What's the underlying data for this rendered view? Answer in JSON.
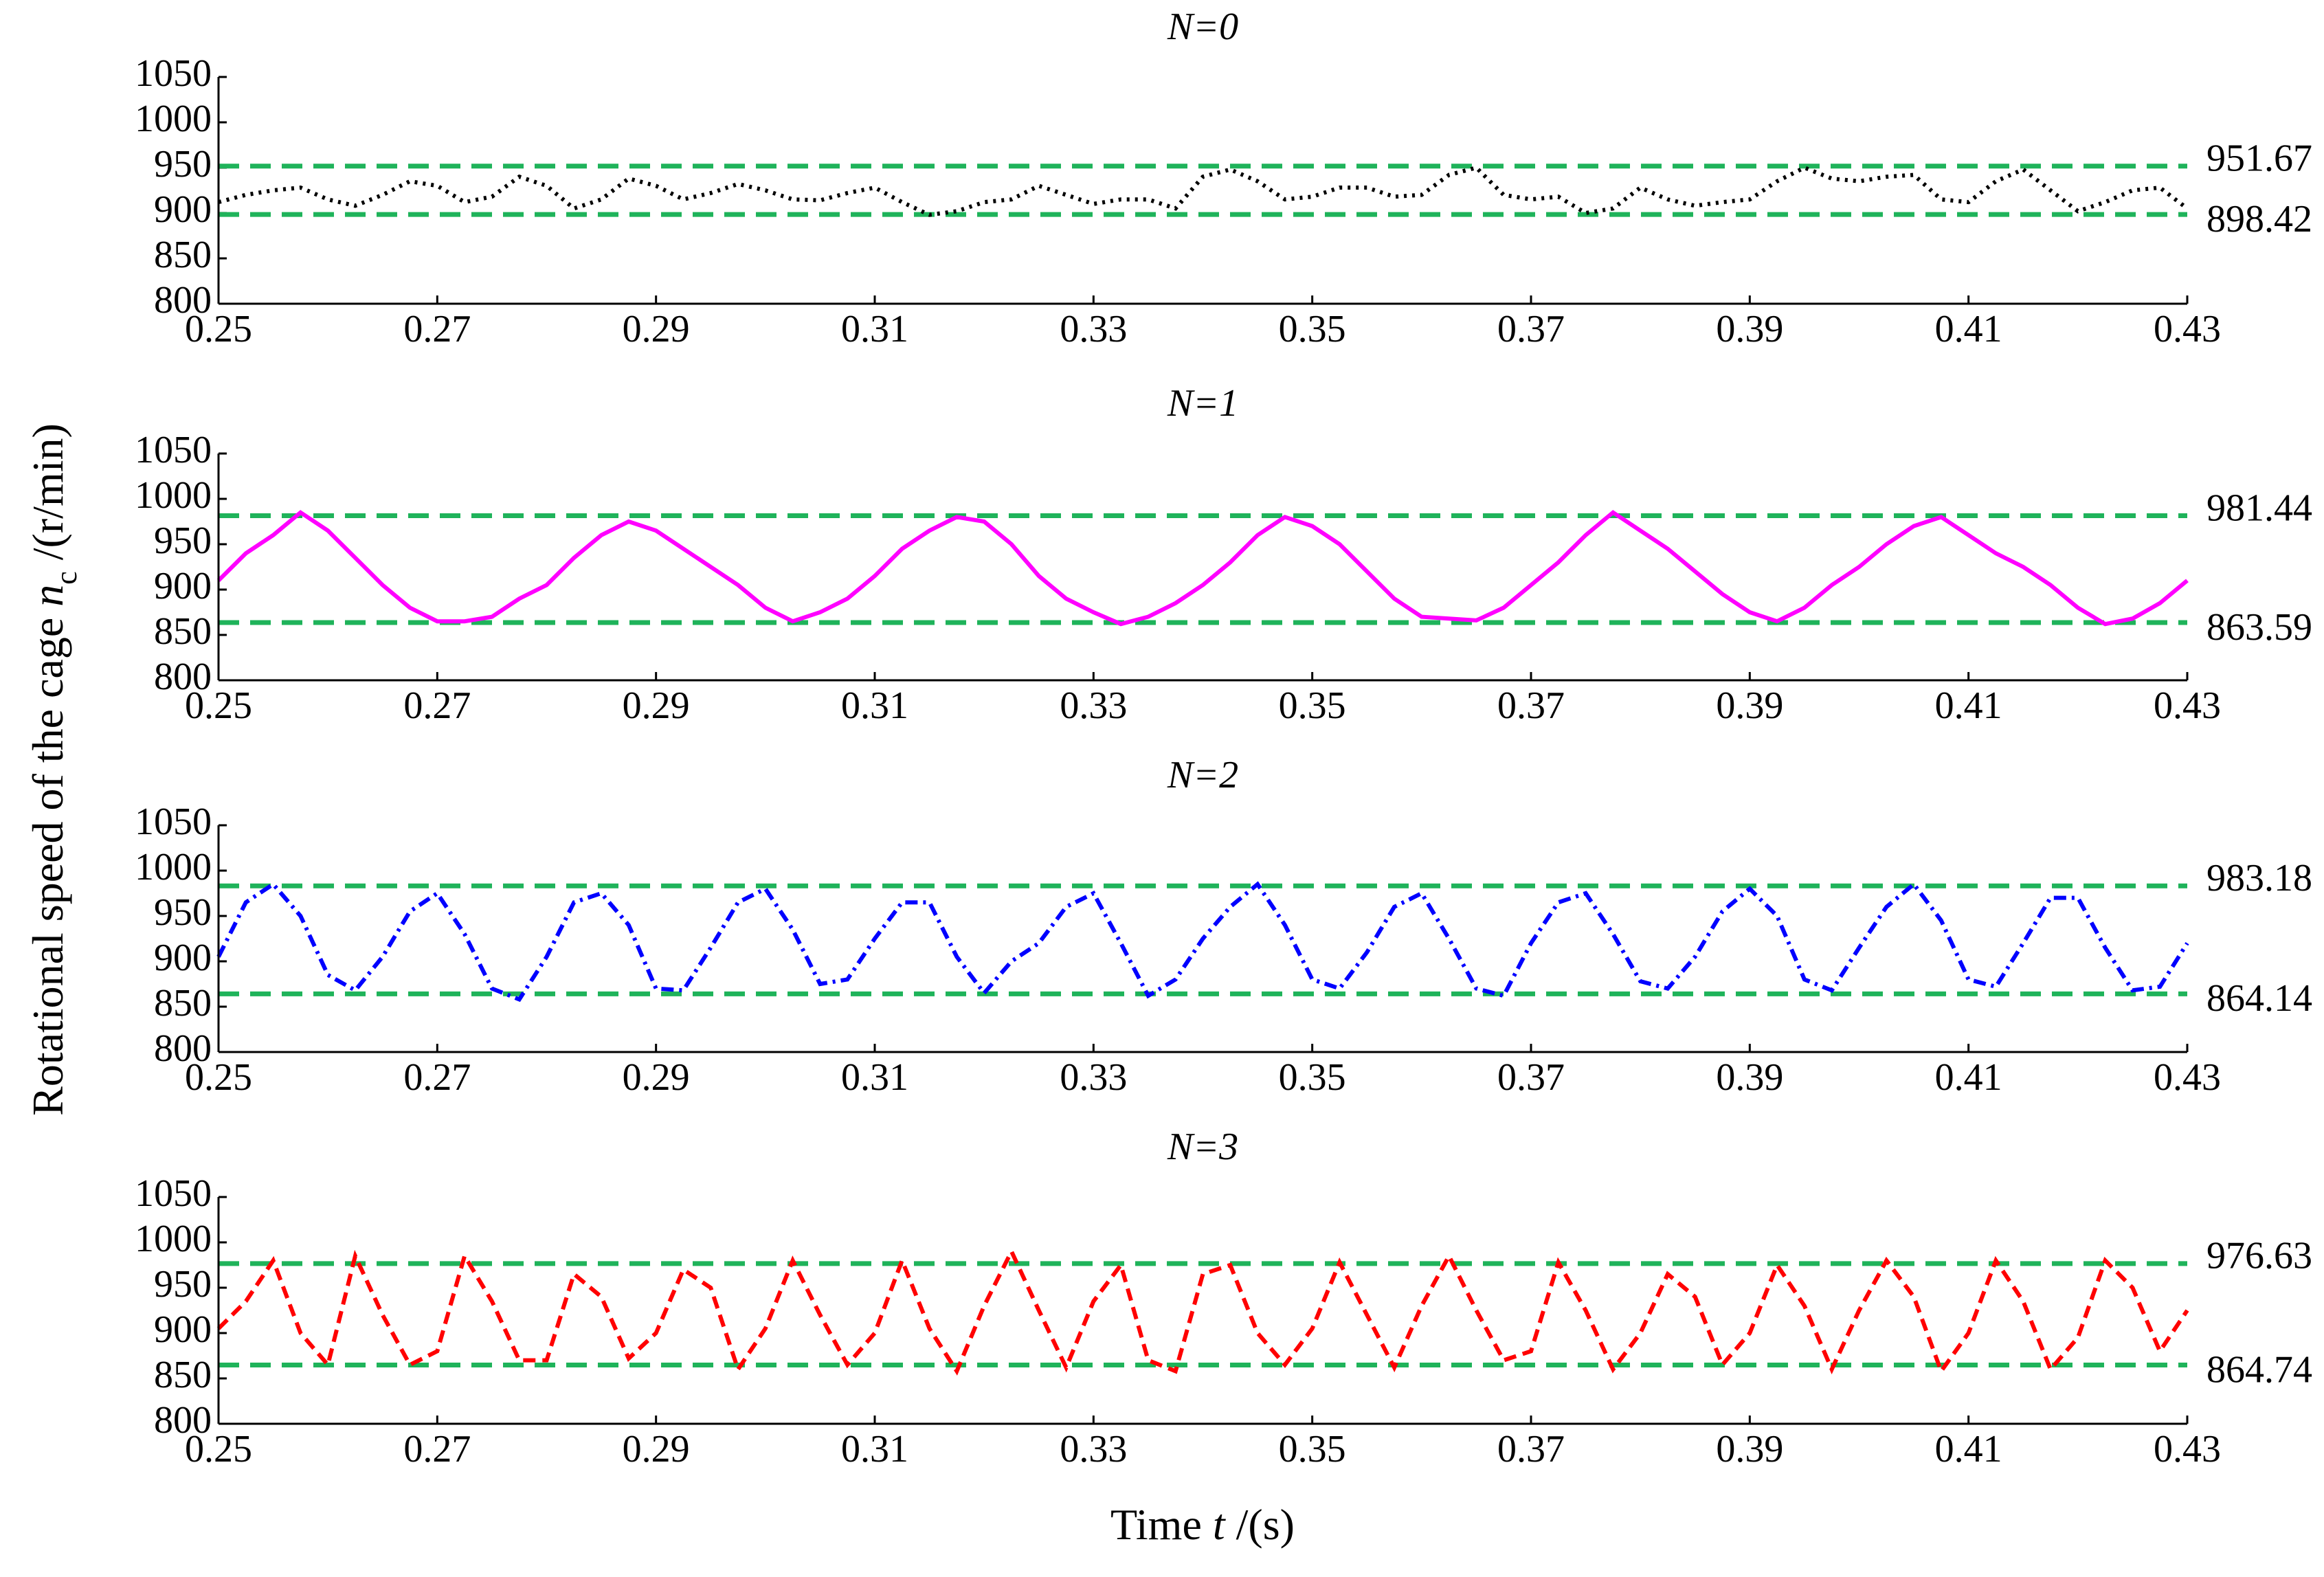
{
  "chart_data": [
    {
      "type": "line",
      "title": "N=0",
      "color": "#000000",
      "linestyle": "dotted",
      "x": [
        0.25,
        0.2525,
        0.255,
        0.2575,
        0.26,
        0.2625,
        0.265,
        0.2675,
        0.27,
        0.2725,
        0.275,
        0.2775,
        0.28,
        0.2825,
        0.285,
        0.2875,
        0.29,
        0.2925,
        0.295,
        0.2975,
        0.3,
        0.3025,
        0.305,
        0.3075,
        0.31,
        0.3125,
        0.315,
        0.3175,
        0.32,
        0.3225,
        0.325,
        0.3275,
        0.33,
        0.3325,
        0.335,
        0.3375,
        0.34,
        0.3425,
        0.345,
        0.3475,
        0.35,
        0.3525,
        0.355,
        0.3575,
        0.36,
        0.3625,
        0.365,
        0.3675,
        0.37,
        0.3725,
        0.375,
        0.3775,
        0.38,
        0.3825,
        0.385,
        0.3875,
        0.39,
        0.3925,
        0.395,
        0.3975,
        0.4,
        0.4025,
        0.405,
        0.4075,
        0.41,
        0.4125,
        0.415,
        0.4175,
        0.42,
        0.4225,
        0.425,
        0.4275,
        0.43
      ],
      "values": [
        912,
        920,
        925,
        928,
        915,
        908,
        920,
        935,
        930,
        912,
        918,
        940,
        930,
        905,
        915,
        938,
        930,
        915,
        922,
        932,
        925,
        915,
        914,
        922,
        928,
        912,
        898,
        902,
        912,
        915,
        930,
        920,
        910,
        915,
        915,
        905,
        940,
        948,
        935,
        915,
        918,
        928,
        928,
        918,
        920,
        942,
        950,
        920,
        915,
        918,
        900,
        905,
        928,
        915,
        908,
        912,
        915,
        935,
        950,
        938,
        935,
        940,
        942,
        915,
        912,
        935,
        948,
        925,
        902,
        912,
        925,
        928,
        905
      ],
      "xlim": [
        0.25,
        0.43
      ],
      "ylim": [
        800,
        1050
      ],
      "xticks": [
        0.25,
        0.27,
        0.29,
        0.31,
        0.33,
        0.35,
        0.37,
        0.39,
        0.41,
        0.43
      ],
      "yticks": [
        800,
        850,
        900,
        950,
        1000,
        1050
      ],
      "hlines": [
        951.67,
        898.42
      ],
      "hline_color": "#1fb35a"
    },
    {
      "type": "line",
      "title": "N=1",
      "color": "#ff00ff",
      "linestyle": "solid",
      "x": [
        0.25,
        0.2525,
        0.255,
        0.2575,
        0.26,
        0.2625,
        0.265,
        0.2675,
        0.27,
        0.2725,
        0.275,
        0.2775,
        0.28,
        0.2825,
        0.285,
        0.2875,
        0.29,
        0.2925,
        0.295,
        0.2975,
        0.3,
        0.3025,
        0.305,
        0.3075,
        0.31,
        0.3125,
        0.315,
        0.3175,
        0.32,
        0.3225,
        0.325,
        0.3275,
        0.33,
        0.3325,
        0.335,
        0.3375,
        0.34,
        0.3425,
        0.345,
        0.3475,
        0.35,
        0.3525,
        0.355,
        0.3575,
        0.36,
        0.3625,
        0.365,
        0.3675,
        0.37,
        0.3725,
        0.375,
        0.3775,
        0.38,
        0.3825,
        0.385,
        0.3875,
        0.39,
        0.3925,
        0.395,
        0.3975,
        0.4,
        0.4025,
        0.405,
        0.4075,
        0.41,
        0.4125,
        0.415,
        0.4175,
        0.42,
        0.4225,
        0.425,
        0.4275,
        0.43
      ],
      "values": [
        910,
        940,
        960,
        985,
        965,
        935,
        905,
        880,
        865,
        865,
        870,
        890,
        905,
        935,
        960,
        975,
        965,
        945,
        925,
        905,
        880,
        865,
        875,
        890,
        915,
        945,
        965,
        980,
        975,
        950,
        915,
        890,
        875,
        862,
        870,
        885,
        905,
        930,
        960,
        980,
        970,
        950,
        920,
        890,
        870,
        868,
        866,
        880,
        905,
        930,
        960,
        985,
        965,
        945,
        920,
        895,
        875,
        865,
        880,
        905,
        925,
        950,
        970,
        980,
        960,
        940,
        925,
        905,
        880,
        862,
        868,
        885,
        910
      ],
      "xlim": [
        0.25,
        0.43
      ],
      "ylim": [
        800,
        1050
      ],
      "xticks": [
        0.25,
        0.27,
        0.29,
        0.31,
        0.33,
        0.35,
        0.37,
        0.39,
        0.41,
        0.43
      ],
      "yticks": [
        800,
        850,
        900,
        950,
        1000,
        1050
      ],
      "hlines": [
        981.44,
        863.59
      ],
      "hline_color": "#1fb35a"
    },
    {
      "type": "line",
      "title": "N=2",
      "color": "#0000ff",
      "linestyle": "dashdot",
      "x": [
        0.25,
        0.2525,
        0.255,
        0.2575,
        0.26,
        0.2625,
        0.265,
        0.2675,
        0.27,
        0.2725,
        0.275,
        0.2775,
        0.28,
        0.2825,
        0.285,
        0.2875,
        0.29,
        0.2925,
        0.295,
        0.2975,
        0.3,
        0.3025,
        0.305,
        0.3075,
        0.31,
        0.3125,
        0.315,
        0.3175,
        0.32,
        0.3225,
        0.325,
        0.3275,
        0.33,
        0.3325,
        0.335,
        0.3375,
        0.34,
        0.3425,
        0.345,
        0.3475,
        0.35,
        0.3525,
        0.355,
        0.3575,
        0.36,
        0.3625,
        0.365,
        0.3675,
        0.37,
        0.3725,
        0.375,
        0.3775,
        0.38,
        0.3825,
        0.385,
        0.3875,
        0.39,
        0.3925,
        0.395,
        0.3975,
        0.4,
        0.4025,
        0.405,
        0.4075,
        0.41,
        0.4125,
        0.415,
        0.4175,
        0.42,
        0.4225,
        0.425,
        0.4275,
        0.43
      ],
      "values": [
        905,
        965,
        985,
        950,
        885,
        868,
        905,
        955,
        975,
        930,
        870,
        858,
        905,
        965,
        975,
        940,
        870,
        868,
        915,
        965,
        980,
        935,
        875,
        880,
        925,
        965,
        965,
        905,
        865,
        900,
        920,
        960,
        975,
        920,
        862,
        880,
        925,
        960,
        985,
        940,
        880,
        870,
        910,
        960,
        975,
        925,
        870,
        862,
        920,
        965,
        975,
        930,
        878,
        870,
        905,
        955,
        980,
        950,
        880,
        868,
        915,
        960,
        985,
        945,
        880,
        872,
        920,
        970,
        970,
        915,
        868,
        872,
        920
      ],
      "xlim": [
        0.25,
        0.43
      ],
      "ylim": [
        800,
        1050
      ],
      "xticks": [
        0.25,
        0.27,
        0.29,
        0.31,
        0.33,
        0.35,
        0.37,
        0.39,
        0.41,
        0.43
      ],
      "yticks": [
        800,
        850,
        900,
        950,
        1000,
        1050
      ],
      "hlines": [
        983.18,
        864.14
      ],
      "hline_color": "#1fb35a"
    },
    {
      "type": "line",
      "title": "N=3",
      "color": "#ff0000",
      "linestyle": "dashed",
      "x": [
        0.25,
        0.2525,
        0.255,
        0.2575,
        0.26,
        0.2625,
        0.265,
        0.2675,
        0.27,
        0.2725,
        0.275,
        0.2775,
        0.28,
        0.2825,
        0.285,
        0.2875,
        0.29,
        0.2925,
        0.295,
        0.2975,
        0.3,
        0.3025,
        0.305,
        0.3075,
        0.31,
        0.3125,
        0.315,
        0.3175,
        0.32,
        0.3225,
        0.325,
        0.3275,
        0.33,
        0.3325,
        0.335,
        0.3375,
        0.34,
        0.3425,
        0.345,
        0.3475,
        0.35,
        0.3525,
        0.355,
        0.3575,
        0.36,
        0.3625,
        0.365,
        0.3675,
        0.37,
        0.3725,
        0.375,
        0.3775,
        0.38,
        0.3825,
        0.385,
        0.3875,
        0.39,
        0.3925,
        0.395,
        0.3975,
        0.4,
        0.4025,
        0.405,
        0.4075,
        0.41,
        0.4125,
        0.415,
        0.4175,
        0.42,
        0.4225,
        0.425,
        0.4275,
        0.43
      ],
      "values": [
        905,
        935,
        980,
        900,
        865,
        985,
        920,
        865,
        880,
        985,
        935,
        870,
        870,
        965,
        940,
        872,
        900,
        970,
        950,
        860,
        905,
        980,
        920,
        865,
        900,
        980,
        905,
        858,
        930,
        990,
        925,
        862,
        935,
        975,
        870,
        858,
        965,
        975,
        900,
        865,
        905,
        978,
        920,
        862,
        930,
        985,
        925,
        870,
        880,
        978,
        925,
        860,
        900,
        965,
        940,
        865,
        900,
        975,
        930,
        860,
        925,
        980,
        940,
        858,
        900,
        980,
        935,
        860,
        895,
        980,
        950,
        880,
        925
      ],
      "xlim": [
        0.25,
        0.43
      ],
      "ylim": [
        800,
        1050
      ],
      "xticks": [
        0.25,
        0.27,
        0.29,
        0.31,
        0.33,
        0.35,
        0.37,
        0.39,
        0.41,
        0.43
      ],
      "yticks": [
        800,
        850,
        900,
        950,
        1000,
        1050
      ],
      "hlines": [
        976.63,
        864.74
      ],
      "hline_color": "#1fb35a"
    }
  ],
  "ylabel": {
    "text": "Rotational speed of the cage ",
    "symbol": "n",
    "subscript": "c",
    "unit": " /(r/min)"
  },
  "xlabel": {
    "text": "Time ",
    "symbol": "t",
    "unit": " /(s)"
  }
}
